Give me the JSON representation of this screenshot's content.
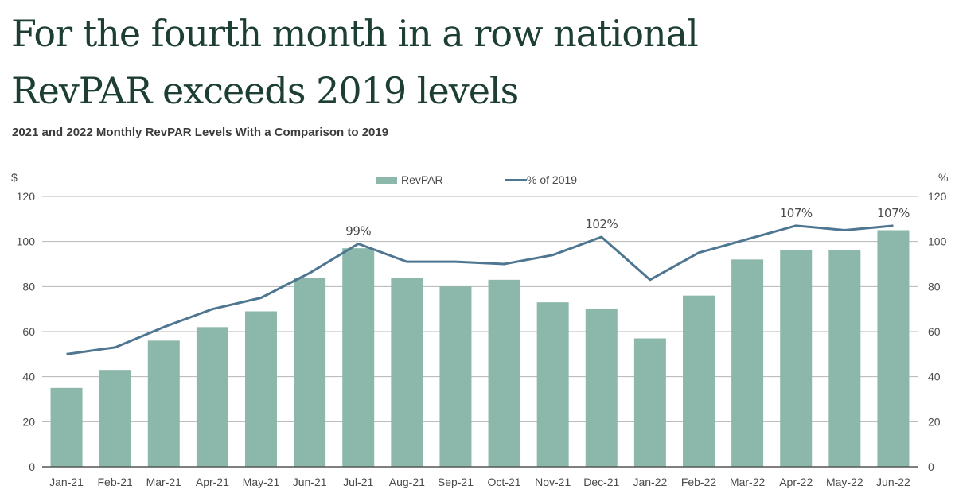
{
  "header": {
    "title_line1": "For the fourth month in a row national",
    "title_line2": "RevPAR exceeds 2019 levels",
    "subtitle": "2021 and 2022 Monthly RevPAR Levels With a Comparison to 2019"
  },
  "colors": {
    "bar": "#8bb8aa",
    "line": "#4e7691",
    "grid": "#b5b5b5",
    "baseline": "#555555",
    "title": "#1d3e33"
  },
  "chart_data": {
    "type": "bar",
    "title": "2021 and 2022 Monthly RevPAR Levels With a Comparison to 2019",
    "categories": [
      "Jan-21",
      "Feb-21",
      "Mar-21",
      "Apr-21",
      "May-21",
      "Jun-21",
      "Jul-21",
      "Aug-21",
      "Sep-21",
      "Oct-21",
      "Nov-21",
      "Dec-21",
      "Jan-22",
      "Feb-22",
      "Mar-22",
      "Apr-22",
      "May-22",
      "Jun-22"
    ],
    "series": [
      {
        "name": "RevPAR",
        "type": "bar",
        "axis": "left",
        "values": [
          35,
          43,
          56,
          62,
          69,
          84,
          97,
          84,
          80,
          83,
          73,
          70,
          57,
          76,
          92,
          96,
          96,
          105
        ]
      },
      {
        "name": "% of 2019",
        "type": "line",
        "axis": "right",
        "values": [
          50,
          53,
          62,
          70,
          75,
          86,
          99,
          91,
          91,
          90,
          94,
          102,
          83,
          95,
          101,
          107,
          105,
          107
        ]
      }
    ],
    "left_axis": {
      "label": "$",
      "ylim": [
        0,
        120
      ],
      "ticks": [
        "0",
        "20",
        "40",
        "60",
        "80",
        "100",
        "120"
      ]
    },
    "right_axis": {
      "label": "%",
      "ylim": [
        0,
        120
      ],
      "ticks": [
        "0",
        "20",
        "40",
        "60",
        "80",
        "100",
        "120"
      ]
    },
    "annotations": [
      {
        "category_index": 6,
        "text": "99%"
      },
      {
        "category_index": 11,
        "text": "102%"
      },
      {
        "category_index": 15,
        "text": "107%"
      },
      {
        "category_index": 17,
        "text": "107%"
      }
    ],
    "legend": {
      "position": "top-center",
      "entries": [
        "RevPAR",
        "% of 2019"
      ]
    },
    "grid": true
  }
}
